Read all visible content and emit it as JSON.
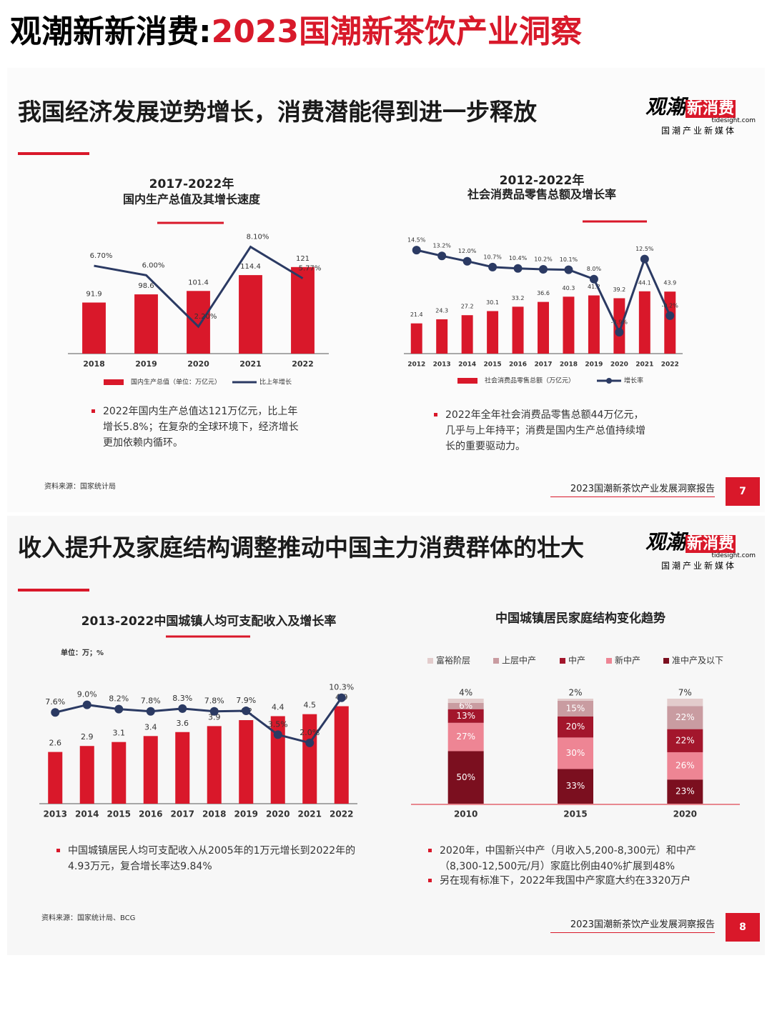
{
  "header": {
    "title_black": "观潮新新消费:",
    "title_red": "2023国潮新茶饮产业洞察"
  },
  "brand": {
    "name_black": "观潮",
    "name_red": "新消费",
    "site": "tidesight.com",
    "tagline": "国潮产业新媒体"
  },
  "slides": [
    {
      "title": "我国经济发展逆势增长，消费潜能得到进一步释放",
      "bullets": [
        "2022年国内生产总值达121万亿元，比上年增长5.8%；在复杂的全球环境下，经济增长更加依赖内循环。",
        "2022年全年社会消费品零售总额44万亿元，几乎与上年持平；消费是国内生产总值持续增长的重要驱动力。"
      ],
      "source": "资料来源：国家统计局",
      "footer": "2023国潮新茶饮产业发展洞察报告",
      "page": "7"
    },
    {
      "title": "收入提升及家庭结构调整推动中国主力消费群体的壮大",
      "bullets": [
        "中国城镇居民人均可支配收入从2005年的1万元增长到2022年的4.93万元，复合增长率达9.84%",
        "2020年，中国新兴中产（月收入5,200-8,300元）和中产（8,300-12,500元/月）家庭比例由40%扩展到48%",
        "另在现有标准下，2022年我国中产家庭大约在3320万户"
      ],
      "source": "资料来源：国家统计局、BCG",
      "footer": "2023国潮新茶饮产业发展洞察报告",
      "page": "8"
    }
  ],
  "chart_data": [
    {
      "type": "combo",
      "title": "2017-2022年",
      "subtitle": "国内生产总值及其增长速度",
      "categories": [
        "2018",
        "2019",
        "2020",
        "2021",
        "2022"
      ],
      "series": [
        {
          "name": "国内生产总值（单位：万亿元）",
          "color": "#d9182a",
          "values": [
            91.9,
            98.6,
            101.4,
            114.4,
            121
          ]
        },
        {
          "name": "比上年增长",
          "color": "#2b3a63",
          "axis": "y2",
          "values": [
            6.7,
            6,
            2.2,
            8.1,
            5.77
          ],
          "value_labels": [
            "6.70%",
            "6.00%",
            "2.20%",
            "8.10%",
            "5.77%"
          ]
        }
      ],
      "ylim": [
        50,
        142
      ],
      "y2lim": [
        0.2,
        8.5
      ],
      "markers": false
    },
    {
      "type": "combo",
      "title": "2012-2022年",
      "subtitle": "社会消费品零售总额及增长率",
      "categories": [
        "2012",
        "2013",
        "2014",
        "2015",
        "2016",
        "2017",
        "2018",
        "2019",
        "2020",
        "2021",
        "2022"
      ],
      "series": [
        {
          "name": "社会消费品零售总额（万亿元）",
          "color": "#d9182a",
          "values": [
            21.4,
            24.3,
            27.2,
            30.1,
            33.2,
            36.6,
            40.3,
            41.2,
            39.2,
            44.1,
            43.9
          ]
        },
        {
          "name": "增长率",
          "color": "#2b3a63",
          "axis": "y2",
          "values": [
            14.5,
            13.2,
            12,
            10.7,
            10.4,
            10.2,
            10.1,
            8,
            -3.9,
            12.5,
            -0.2
          ],
          "value_labels": [
            "14.5%",
            "13.2%",
            "12.0%",
            "10.7%",
            "10.4%",
            "10.2%",
            "10.1%",
            "8.0%",
            "-3.9%",
            "12.5%",
            "-0.2%"
          ]
        }
      ],
      "ylim": [
        0,
        90
      ],
      "y2lim": [
        -8.7,
        19.8
      ],
      "markers": true
    },
    {
      "type": "combo",
      "title": "2013-2022中国城镇人均可支配收入及增长率",
      "unit": "单位：万；%",
      "categories": [
        "2013",
        "2014",
        "2015",
        "2016",
        "2017",
        "2018",
        "2019",
        "2020",
        "2021",
        "2022"
      ],
      "series": [
        {
          "name": "人均可支配收入",
          "color": "#d9182a",
          "values": [
            2.6,
            2.9,
            3.1,
            3.4,
            3.6,
            3.9,
            4.2,
            4.4,
            4.5,
            4.9
          ]
        },
        {
          "name": "增长率",
          "color": "#2b3a63",
          "axis": "y2",
          "values": [
            7.6,
            9.0,
            8.2,
            7.8,
            8.3,
            7.8,
            7.9,
            3.5,
            2.0,
            10.3
          ],
          "value_labels": [
            "7.6%",
            "9.0%",
            "8.2%",
            "7.8%",
            "8.3%",
            "7.8%",
            "7.9%",
            "3.5%",
            "2.0%",
            "10.3%"
          ]
        }
      ],
      "ylim": [
        0,
        6.5
      ],
      "y2lim": [
        -9.2,
        14.6
      ],
      "markers": true,
      "legend": false
    },
    {
      "type": "stacked_bar",
      "title": "中国城镇居民家庭结构变化趋势",
      "categories": [
        "2010",
        "2015",
        "2020"
      ],
      "series": [
        {
          "name": "富裕阶层",
          "color": "#e3cccc",
          "values": [
            4,
            2,
            7
          ],
          "value_labels": [
            "4%",
            "2%",
            "7%"
          ]
        },
        {
          "name": "上层中产",
          "color": "#c99ca1",
          "values": [
            6,
            15,
            22
          ],
          "value_labels": [
            "6%",
            "15%",
            "22%"
          ]
        },
        {
          "name": "中产",
          "color": "#a3162c",
          "values": [
            13,
            20,
            22
          ],
          "value_labels": [
            "13%",
            "20%",
            "22%"
          ]
        },
        {
          "name": "新中产",
          "color": "#ee8594",
          "values": [
            27,
            30,
            26
          ],
          "value_labels": [
            "27%",
            "30%",
            "26%"
          ]
        },
        {
          "name": "准中产及以下",
          "color": "#7b0f1f",
          "values": [
            50,
            33,
            23
          ],
          "value_labels": [
            "50%",
            "33%",
            "23%"
          ]
        }
      ],
      "ylim": [
        0,
        100
      ]
    }
  ]
}
